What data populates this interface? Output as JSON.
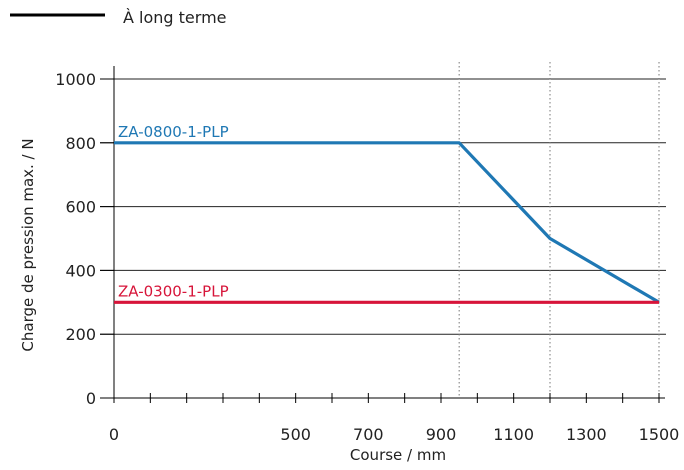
{
  "chart_data": {
    "type": "line",
    "xlabel": "Course / mm",
    "ylabel": "Charge de pression max. / N",
    "xlim": [
      0,
      1500
    ],
    "ylim": [
      0,
      1000
    ],
    "x_ticks": [
      0,
      500,
      700,
      900,
      1100,
      1300,
      1500
    ],
    "y_ticks": [
      0,
      200,
      400,
      600,
      800,
      1000
    ],
    "legend": {
      "label": "À long terme",
      "position": "top-left"
    },
    "grid": true,
    "series": [
      {
        "name": "ZA-0800-1-PLP",
        "color": "#1f78b4",
        "points": [
          [
            0,
            800
          ],
          [
            950,
            800
          ],
          [
            1200,
            500
          ],
          [
            1500,
            300
          ]
        ]
      },
      {
        "name": "ZA-0300-1-PLP",
        "color": "#d7153a",
        "points": [
          [
            0,
            300
          ],
          [
            1500,
            300
          ]
        ]
      }
    ]
  }
}
